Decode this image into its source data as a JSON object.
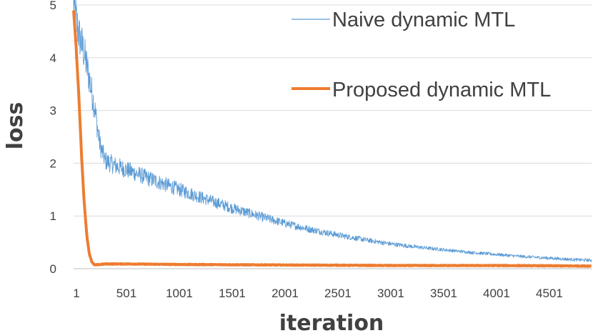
{
  "chart_data": {
    "type": "line",
    "xlabel": "iteration",
    "ylabel": "loss",
    "xlim": [
      1,
      4900
    ],
    "ylim": [
      0,
      5
    ],
    "x_ticks": [
      "1",
      "501",
      "1001",
      "1501",
      "2001",
      "2501",
      "3001",
      "3501",
      "4001",
      "4501"
    ],
    "y_ticks": [
      "0",
      "1",
      "2",
      "3",
      "4",
      "5"
    ],
    "grid": "horizontal",
    "legend_position": "top-right",
    "series": [
      {
        "name": "Naive dynamic MTL",
        "color": "#5B9BD5",
        "style": "thin noisy line",
        "x": [
          1,
          50,
          100,
          150,
          200,
          250,
          300,
          350,
          400,
          500,
          700,
          1000,
          1250,
          1500,
          1750,
          2000,
          2250,
          2500,
          2750,
          3000,
          3250,
          3500,
          3750,
          4000,
          4250,
          4500,
          4750,
          4900
        ],
        "y": [
          5.0,
          4.45,
          4.1,
          3.6,
          3.05,
          2.35,
          2.05,
          2.0,
          1.95,
          1.88,
          1.72,
          1.5,
          1.32,
          1.15,
          1.0,
          0.86,
          0.74,
          0.64,
          0.55,
          0.47,
          0.41,
          0.36,
          0.31,
          0.27,
          0.23,
          0.2,
          0.17,
          0.16
        ]
      },
      {
        "name": "Proposed dynamic MTL",
        "color": "#ED7D31",
        "style": "thick line",
        "x": [
          1,
          25,
          50,
          75,
          100,
          125,
          150,
          175,
          200,
          250,
          300,
          500,
          1000,
          2000,
          3000,
          4000,
          4900
        ],
        "y": [
          4.9,
          4.2,
          3.3,
          2.2,
          1.3,
          0.65,
          0.28,
          0.12,
          0.07,
          0.08,
          0.09,
          0.09,
          0.08,
          0.07,
          0.06,
          0.06,
          0.05
        ]
      }
    ]
  }
}
